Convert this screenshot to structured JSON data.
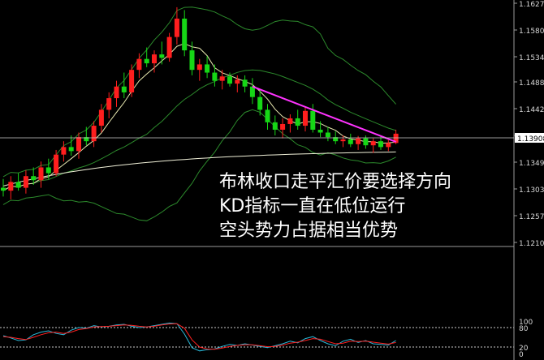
{
  "chart_data": [
    {
      "type": "candlestick",
      "panel": "price",
      "y_axis": {
        "ticks": [
          "1.16270",
          "1.15800",
          "1.15340",
          "1.14880",
          "1.14420",
          "1.13950",
          "1.13490",
          "1.13030",
          "1.12570",
          "1.12100"
        ],
        "range": [
          1.21,
          1.1627
        ]
      },
      "current_price_label": "1.13908",
      "current_price": 1.13908,
      "annotations": [
        "布林收口走平汇价要选择方向",
        "KD指标一直在低位运行",
        "空头势力占据相当优势"
      ],
      "candles": [
        [
          1.1305,
          1.132,
          1.129,
          1.13
        ],
        [
          1.13,
          1.1325,
          1.1285,
          1.1315
        ],
        [
          1.1315,
          1.133,
          1.13,
          1.1305
        ],
        [
          1.1305,
          1.1335,
          1.1295,
          1.1325
        ],
        [
          1.1325,
          1.134,
          1.131,
          1.1318
        ],
        [
          1.1318,
          1.135,
          1.1305,
          1.134
        ],
        [
          1.134,
          1.1355,
          1.132,
          1.133
        ],
        [
          1.133,
          1.137,
          1.1325,
          1.1362
        ],
        [
          1.1362,
          1.1385,
          1.135,
          1.1375
        ],
        [
          1.1375,
          1.1395,
          1.136,
          1.1368
        ],
        [
          1.1368,
          1.14,
          1.1355,
          1.1392
        ],
        [
          1.1392,
          1.141,
          1.1378,
          1.1385
        ],
        [
          1.1385,
          1.142,
          1.1375,
          1.1412
        ],
        [
          1.1412,
          1.145,
          1.14,
          1.144
        ],
        [
          1.144,
          1.147,
          1.1425,
          1.146
        ],
        [
          1.146,
          1.149,
          1.1445,
          1.148
        ],
        [
          1.148,
          1.1505,
          1.146,
          1.147
        ],
        [
          1.147,
          1.152,
          1.1462,
          1.151
        ],
        [
          1.151,
          1.154,
          1.1495,
          1.153
        ],
        [
          1.153,
          1.155,
          1.1515,
          1.1522
        ],
        [
          1.1522,
          1.1545,
          1.1505,
          1.1538
        ],
        [
          1.1538,
          1.156,
          1.152,
          1.1532
        ],
        [
          1.1532,
          1.1575,
          1.1525,
          1.1568
        ],
        [
          1.1568,
          1.162,
          1.1555,
          1.16
        ],
        [
          1.16,
          1.1615,
          1.1535,
          1.1545
        ],
        [
          1.1545,
          1.156,
          1.15,
          1.151
        ],
        [
          1.151,
          1.153,
          1.149,
          1.152
        ],
        [
          1.152,
          1.1535,
          1.1495,
          1.1505
        ],
        [
          1.1505,
          1.152,
          1.148,
          1.149
        ],
        [
          1.149,
          1.151,
          1.1475,
          1.1498
        ],
        [
          1.1498,
          1.1505,
          1.148,
          1.1485
        ],
        [
          1.1485,
          1.15,
          1.147,
          1.1492
        ],
        [
          1.1492,
          1.15,
          1.147,
          1.148
        ],
        [
          1.148,
          1.1495,
          1.145,
          1.1462
        ],
        [
          1.1462,
          1.1475,
          1.143,
          1.144
        ],
        [
          1.144,
          1.145,
          1.1405,
          1.1418
        ],
        [
          1.1418,
          1.143,
          1.1395,
          1.1405
        ],
        [
          1.1405,
          1.1425,
          1.139,
          1.1415
        ],
        [
          1.1415,
          1.1432,
          1.14,
          1.1425
        ],
        [
          1.1425,
          1.144,
          1.1405,
          1.1412
        ],
        [
          1.1412,
          1.1445,
          1.1402,
          1.1438
        ],
        [
          1.1438,
          1.145,
          1.14,
          1.1405
        ],
        [
          1.1405,
          1.142,
          1.1392,
          1.14
        ],
        [
          1.14,
          1.141,
          1.1385,
          1.1392
        ],
        [
          1.1392,
          1.1402,
          1.138,
          1.1385
        ],
        [
          1.1385,
          1.1395,
          1.1375,
          1.1388
        ],
        [
          1.1388,
          1.1398,
          1.1375,
          1.138
        ],
        [
          1.138,
          1.1394,
          1.137,
          1.139
        ],
        [
          1.139,
          1.1395,
          1.1372,
          1.1378
        ],
        [
          1.1378,
          1.139,
          1.1365,
          1.1385
        ],
        [
          1.1385,
          1.1393,
          1.137,
          1.1375
        ],
        [
          1.1375,
          1.1387,
          1.1368,
          1.1382
        ],
        [
          1.1382,
          1.1405,
          1.138,
          1.1398
        ]
      ],
      "overlays": [
        "bollinger-upper",
        "bollinger-middle",
        "bollinger-lower",
        "moving-average",
        "trend-line"
      ],
      "colors": {
        "up": "#ff1e1e",
        "down": "#16d716",
        "ma": "#e8e8b0",
        "bollinger": "#2c8a2c",
        "long_ma": "#f0f0d8",
        "trend": "#ff33ff",
        "price_line": "#cccccc"
      }
    },
    {
      "type": "line",
      "panel": "stochastic",
      "y_axis": {
        "ticks": [
          "100",
          "80",
          "20",
          "0"
        ],
        "range": [
          0,
          100
        ]
      },
      "reference_levels": [
        80,
        20
      ],
      "series": [
        {
          "color": "#29b8d8",
          "values": [
            55,
            48,
            40,
            42,
            58,
            66,
            70,
            62,
            58,
            72,
            80,
            78,
            86,
            82,
            84,
            88,
            90,
            84,
            80,
            82,
            86,
            90,
            94,
            92,
            60,
            18,
            8,
            12,
            14,
            22,
            28,
            25,
            30,
            26,
            22,
            18,
            24,
            30,
            38,
            33,
            46,
            52,
            40,
            30,
            24,
            38,
            44,
            34,
            40,
            30,
            28,
            26,
            40
          ]
        },
        {
          "color": "#ff2020",
          "values": [
            52,
            50,
            46,
            43,
            50,
            58,
            64,
            66,
            62,
            66,
            74,
            77,
            82,
            83,
            84,
            86,
            88,
            87,
            84,
            82,
            84,
            88,
            91,
            92,
            78,
            42,
            20,
            14,
            13,
            17,
            22,
            25,
            27,
            27,
            24,
            21,
            22,
            26,
            32,
            35,
            40,
            46,
            44,
            37,
            30,
            32,
            38,
            37,
            38,
            35,
            32,
            29,
            34
          ]
        }
      ],
      "colors": {
        "k": "#29b8d8",
        "d": "#ff2020",
        "levels": "#cccccc"
      }
    }
  ]
}
